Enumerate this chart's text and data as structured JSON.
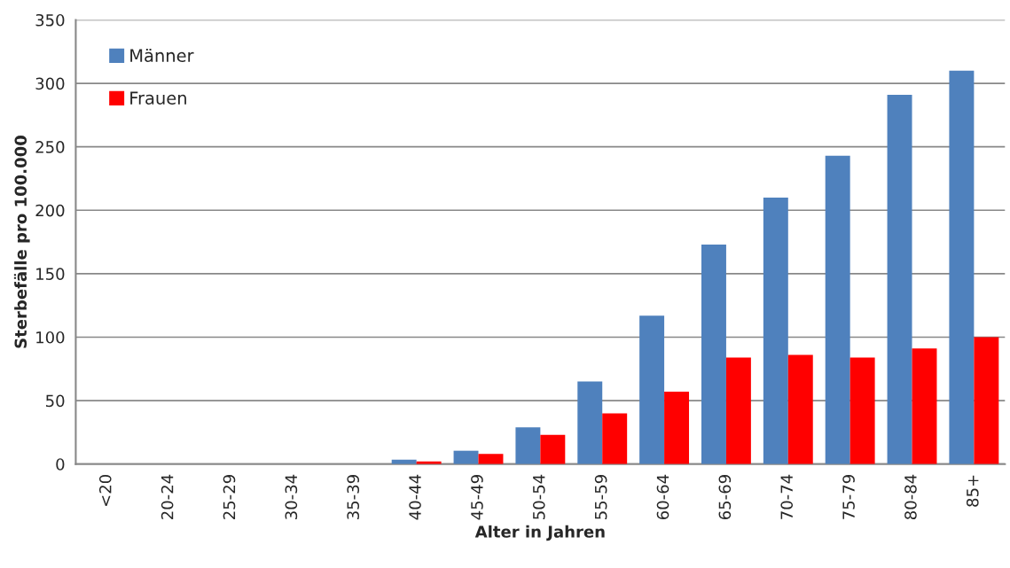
{
  "chart_data": {
    "type": "bar",
    "xlabel": "Alter in Jahren",
    "ylabel": "Sterbefälle pro 100.000",
    "categories": [
      "<20",
      "20-24",
      "25-29",
      "30-34",
      "35-39",
      "40-44",
      "45-49",
      "50-54",
      "55-59",
      "60-64",
      "65-69",
      "70-74",
      "75-79",
      "80-84",
      "85+"
    ],
    "series": [
      {
        "name": "Männer",
        "color": "#4f81bd",
        "values": [
          0,
          0,
          null,
          null,
          null,
          3.5,
          10.5,
          29,
          65,
          117,
          173,
          210,
          243,
          291,
          310
        ]
      },
      {
        "name": "Frauen",
        "color": "#ff0000",
        "values": [
          0,
          0,
          0,
          null,
          null,
          2,
          8,
          23,
          40,
          57,
          84,
          86,
          84,
          91,
          100
        ]
      }
    ],
    "ylim": [
      0,
      350
    ],
    "yticks": [
      0,
      50,
      100,
      150,
      200,
      250,
      300,
      350
    ],
    "grid": "y",
    "legend": "top left"
  }
}
